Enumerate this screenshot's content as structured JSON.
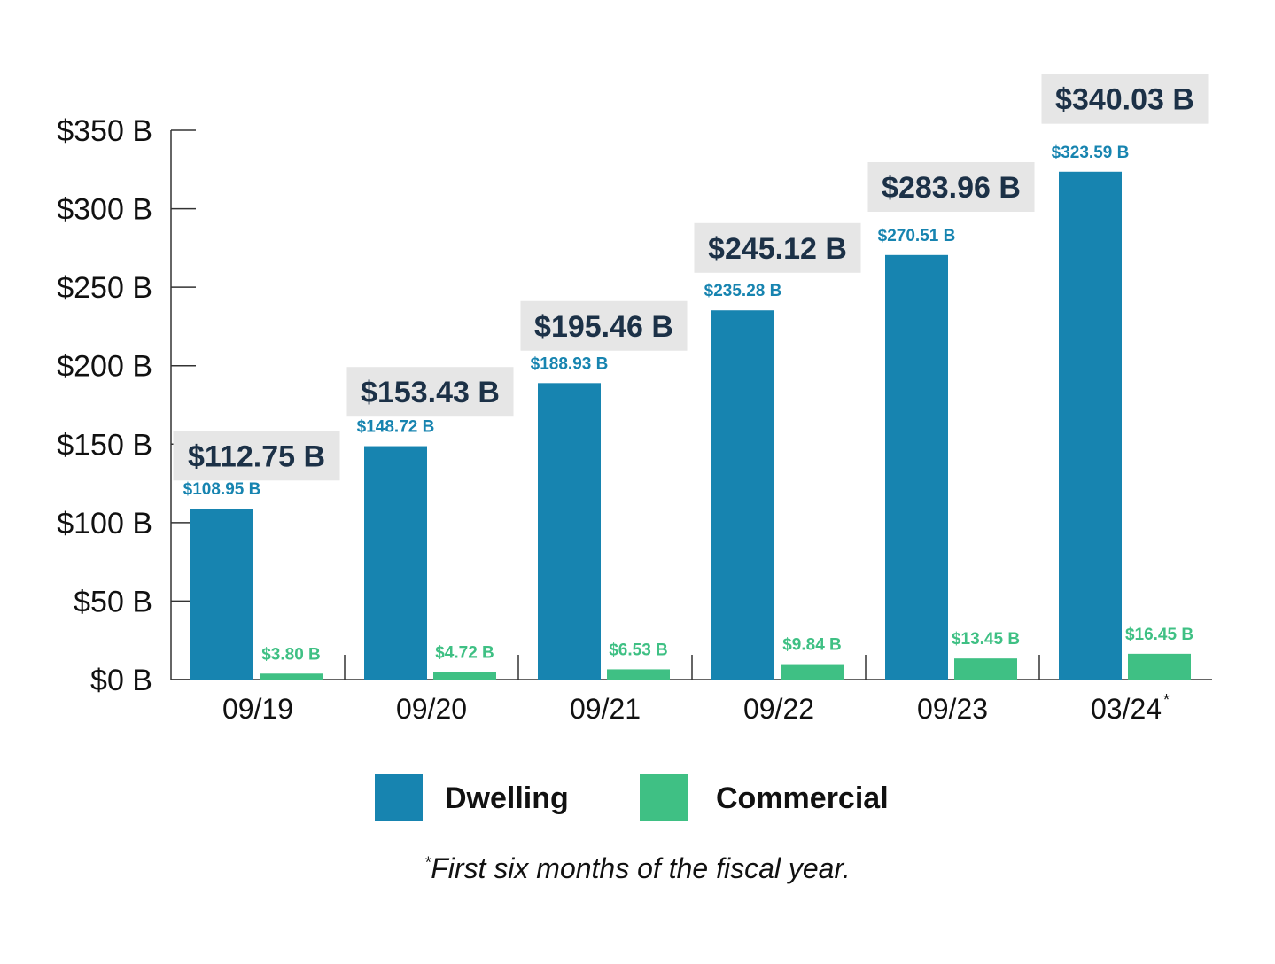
{
  "chart_data": {
    "type": "bar",
    "categories": [
      "09/19",
      "09/20",
      "09/21",
      "09/22",
      "09/23",
      "03/24"
    ],
    "category_markers": [
      "",
      "",
      "",
      "",
      "",
      "*"
    ],
    "series": [
      {
        "name": "Dwelling",
        "color": "#1784b0",
        "values": [
          108.95,
          148.72,
          188.93,
          235.28,
          270.51,
          323.59
        ],
        "labels": [
          "$108.95 B",
          "$148.72 B",
          "$188.93 B",
          "$235.28 B",
          "$270.51 B",
          "$323.59 B"
        ]
      },
      {
        "name": "Commercial",
        "color": "#3fc084",
        "values": [
          3.8,
          4.72,
          6.53,
          9.84,
          13.45,
          16.45
        ],
        "labels": [
          "$3.80 B",
          "$4.72 B",
          "$6.53 B",
          "$9.84 B",
          "$13.45 B",
          "$16.45 B"
        ]
      }
    ],
    "totals": [
      112.75,
      153.43,
      195.46,
      245.12,
      283.96,
      340.03
    ],
    "total_labels": [
      "$112.75 B",
      "$153.43 B",
      "$195.46 B",
      "$245.12 B",
      "$283.96 B",
      "$340.03 B"
    ],
    "y_ticks": [
      0,
      50,
      100,
      150,
      200,
      250,
      300,
      350
    ],
    "y_tick_labels": [
      "$0 B",
      "$50 B",
      "$100 B",
      "$150 B",
      "$200 B",
      "$250 B",
      "$300 B",
      "$350 B"
    ],
    "ylim": [
      0,
      350
    ],
    "grid": false,
    "legend_position": "bottom-center",
    "total_label_bg": "#e6e6e6",
    "total_label_color": "#1c3147",
    "footnote_marker": "*",
    "footnote_text": "First six months of the fiscal year."
  }
}
